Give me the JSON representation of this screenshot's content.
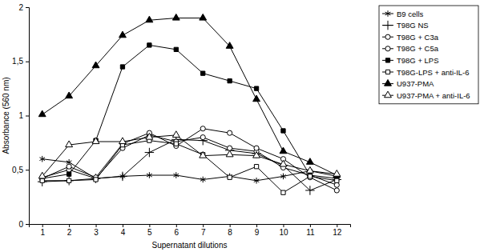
{
  "chart_data": {
    "type": "line",
    "x_label": "Supernatant  dilutions",
    "y_label": "Absorbance (560 nm)",
    "x": [
      1,
      2,
      3,
      4,
      5,
      6,
      7,
      8,
      9,
      10,
      11,
      12
    ],
    "xlim": [
      0.5,
      12.5
    ],
    "xticks": [
      1,
      2,
      3,
      4,
      5,
      6,
      7,
      8,
      9,
      10,
      11,
      12
    ],
    "ylim": [
      0,
      2
    ],
    "yticks": [
      0,
      {
        "value": 0.5,
        "label": "0,5"
      },
      1,
      {
        "value": 1.5,
        "label": "1,5"
      },
      2
    ],
    "grid": false,
    "legend": "right",
    "series": [
      {
        "name": "B9 cells",
        "color": "#000000",
        "marker": "asterisk",
        "values": [
          0.6,
          0.57,
          0.42,
          0.44,
          0.45,
          0.45,
          0.41,
          0.44,
          0.4,
          0.44,
          0.49,
          0.44
        ]
      },
      {
        "name": "T98G NS",
        "color": "#000000",
        "marker": "plus",
        "values": [
          0.39,
          0.4,
          0.42,
          0.44,
          0.66,
          0.78,
          0.77,
          0.68,
          0.65,
          0.54,
          0.31,
          0.41
        ]
      },
      {
        "name": "T98G + C3a",
        "color": "#000000",
        "marker": "circle-open",
        "values": [
          0.43,
          0.5,
          0.42,
          0.7,
          0.82,
          0.76,
          0.8,
          0.7,
          0.67,
          0.52,
          0.45,
          0.36
        ]
      },
      {
        "name": "T98G + C5a",
        "color": "#000000",
        "marker": "circle-open",
        "values": [
          0.42,
          0.53,
          0.43,
          0.74,
          0.84,
          0.72,
          0.88,
          0.84,
          0.7,
          0.6,
          0.43,
          0.31
        ]
      },
      {
        "name": "T98G + LPS",
        "color": "#000000",
        "marker": "square-filled",
        "values": [
          0.42,
          0.46,
          0.77,
          1.45,
          1.65,
          1.61,
          1.39,
          1.32,
          1.25,
          0.86,
          0.45,
          0.42
        ]
      },
      {
        "name": "T98G-LPS + anti-IL-6",
        "color": "#000000",
        "marker": "square-open",
        "values": [
          0.4,
          0.4,
          0.41,
          0.73,
          0.77,
          0.74,
          0.64,
          0.43,
          0.53,
          0.29,
          0.44,
          0.4
        ]
      },
      {
        "name": "U937-PMA",
        "color": "#000000",
        "marker": "triangle-filled",
        "values": [
          1.01,
          1.18,
          1.46,
          1.74,
          1.88,
          1.9,
          1.9,
          1.64,
          1.15,
          0.67,
          0.57,
          0.45
        ]
      },
      {
        "name": "U937-PMA + anti-IL-6",
        "color": "#000000",
        "marker": "triangle-open",
        "values": [
          0.44,
          0.73,
          0.76,
          0.76,
          0.8,
          0.82,
          0.63,
          0.64,
          0.63,
          0.55,
          0.49,
          0.46
        ]
      }
    ]
  }
}
